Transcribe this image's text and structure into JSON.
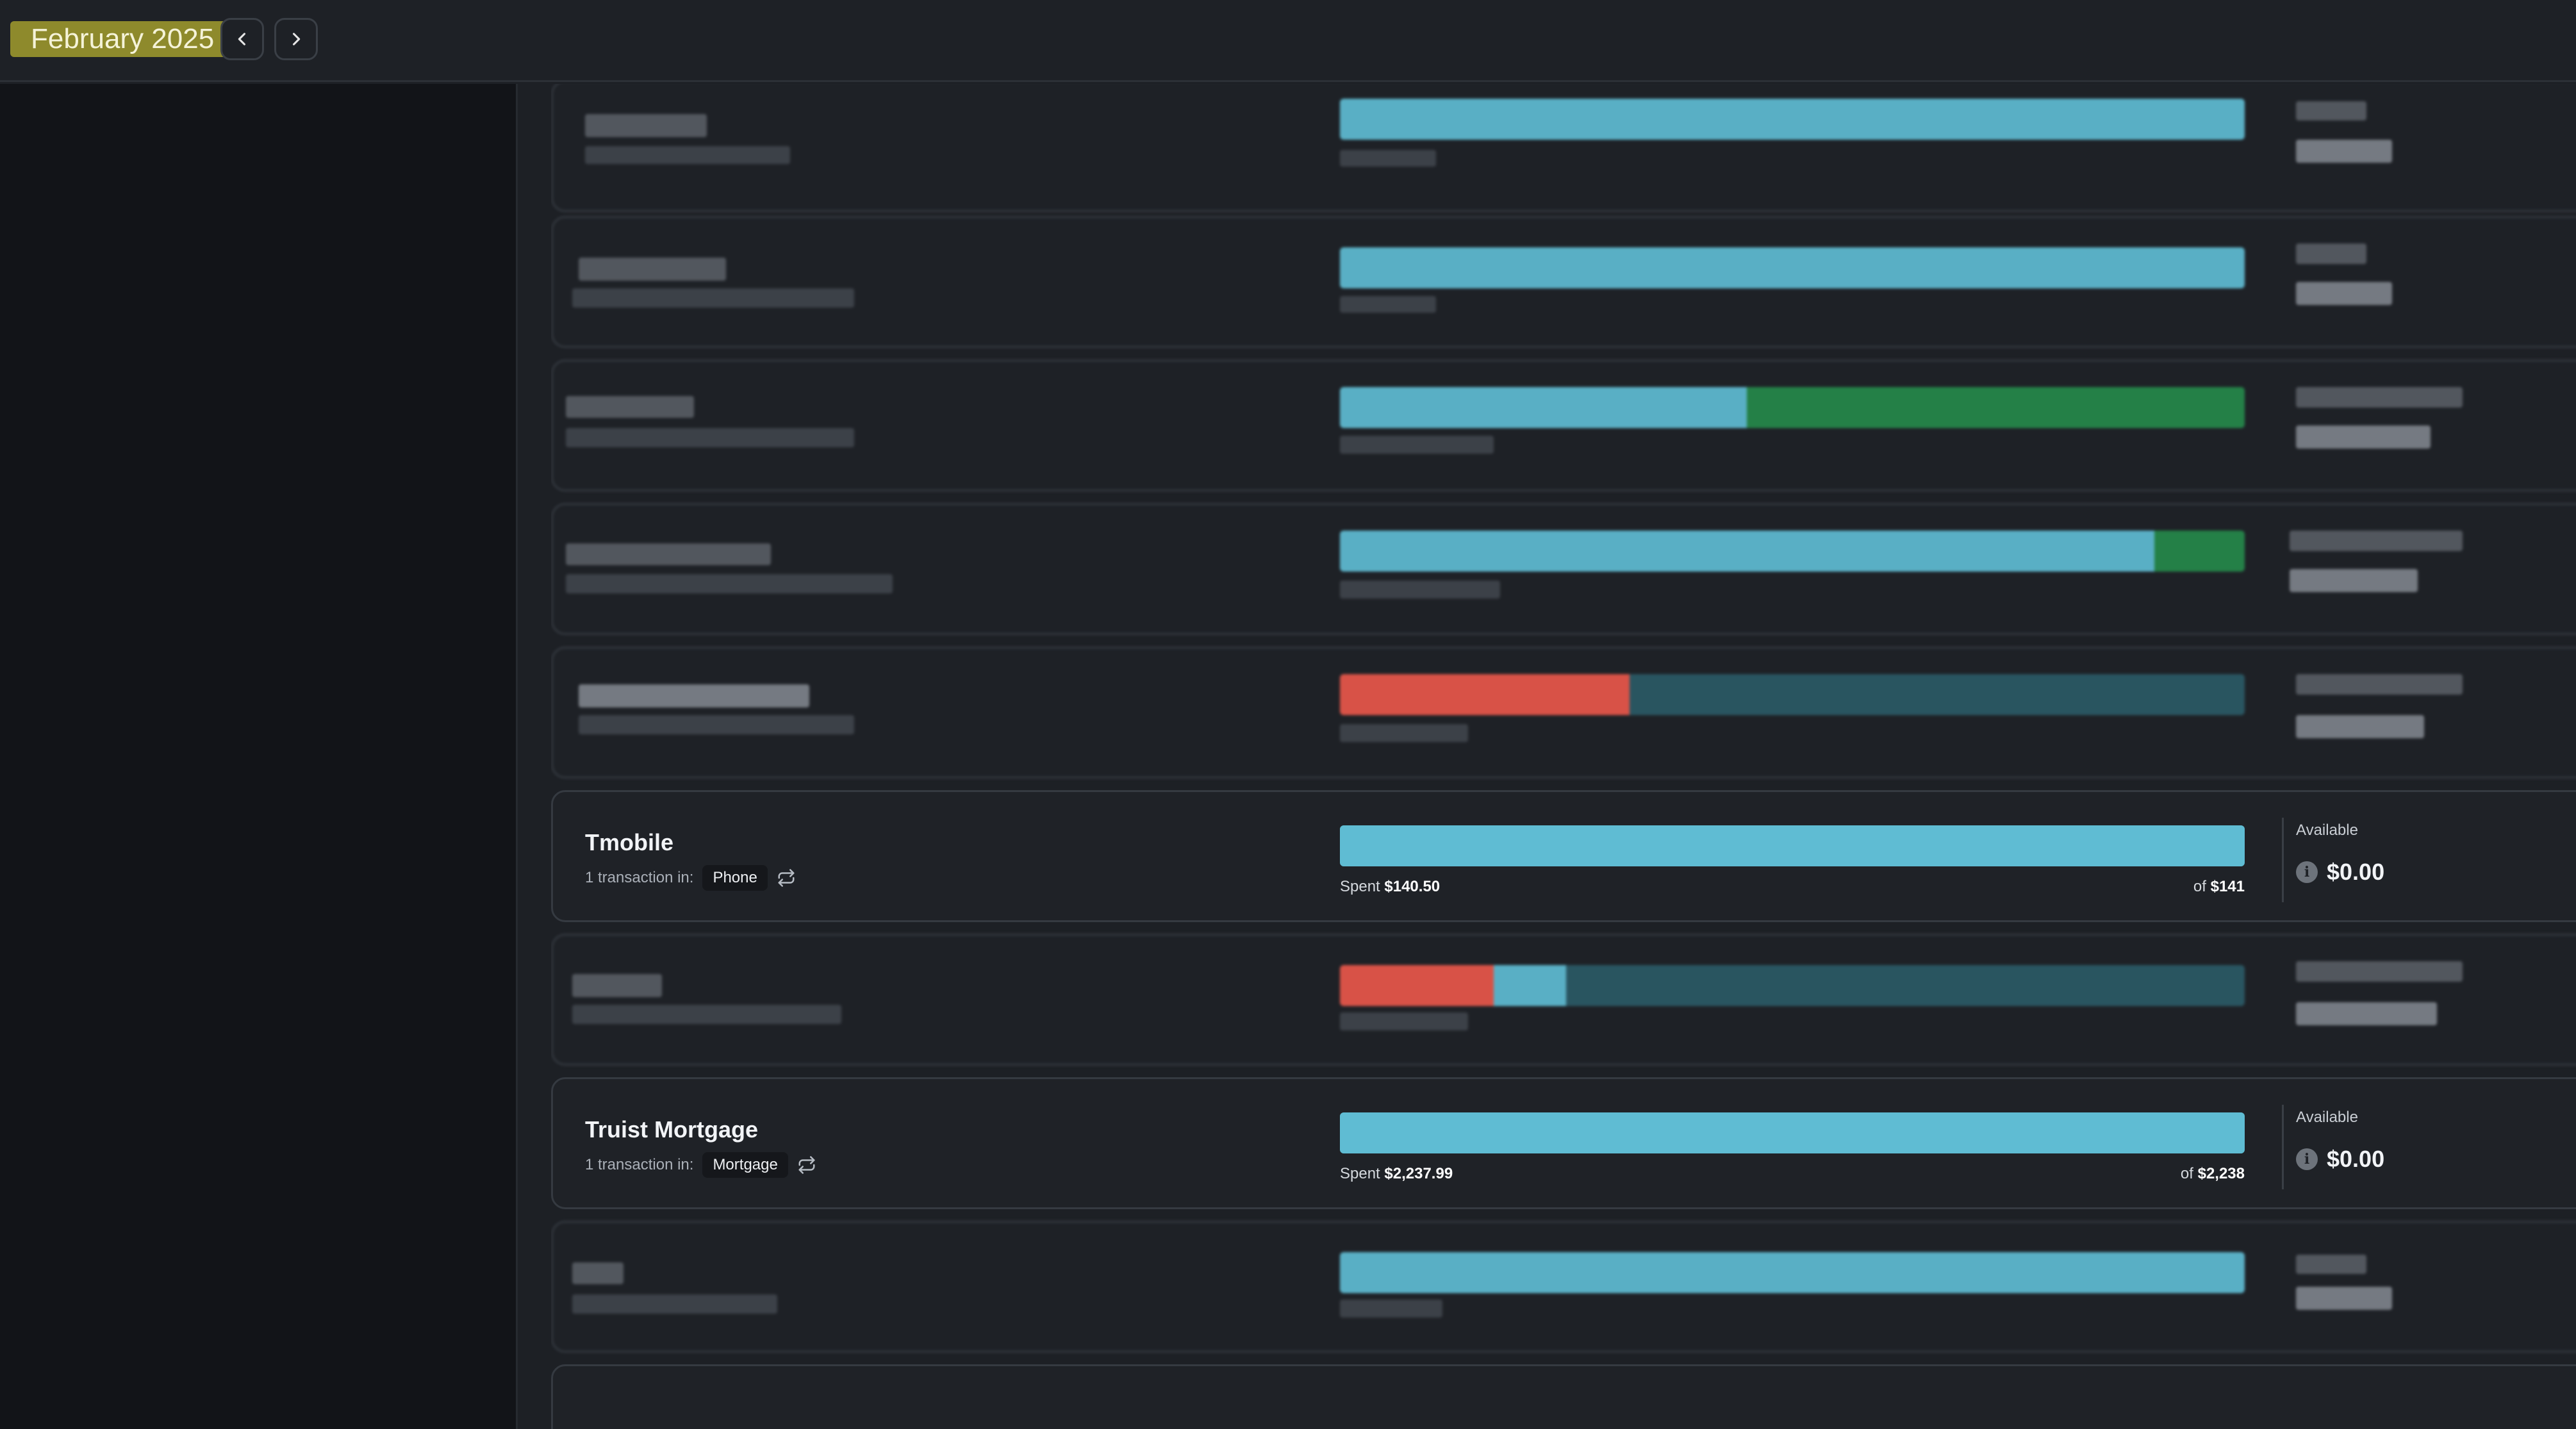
{
  "header": {
    "month": "February 2025",
    "prev_icon": "chevron-left-icon",
    "next_icon": "chevron-right-icon"
  },
  "colors": {
    "month_highlight": "#8e8a2c",
    "bar_spent": "#5fbcd3",
    "bar_track": "#2b5a66",
    "bar_over": "#e8574a",
    "bar_extra": "#25894a"
  },
  "budgets": [
    {
      "name": "Tmobile",
      "transactions_prefix": "1 transaction in:",
      "category": "Phone",
      "repeat_icon": "repeat-icon",
      "spent_prefix": "Spent",
      "spent": "$140.50",
      "of_prefix": "of",
      "limit": "$141",
      "progress_fraction": 1.0,
      "available_label": "Available",
      "available": "$0.00",
      "info_icon": "info-icon"
    },
    {
      "name": "Truist Mortgage",
      "transactions_prefix": "1 transaction in:",
      "category": "Mortgage",
      "repeat_icon": "repeat-icon",
      "spent_prefix": "Spent",
      "spent": "$2,237.99",
      "of_prefix": "of",
      "limit": "$2,238",
      "progress_fraction": 1.0,
      "available_label": "Available",
      "available": "$0.00",
      "info_icon": "info-icon"
    }
  ],
  "obscured_cards": [
    {
      "spent_fraction": 1.0,
      "extra_fraction": 0,
      "over_fraction": 0
    },
    {
      "spent_fraction": 1.0,
      "extra_fraction": 0,
      "over_fraction": 0
    },
    {
      "spent_fraction": 0.45,
      "extra_fraction": 0.55,
      "over_fraction": 0
    },
    {
      "spent_fraction": 0.9,
      "extra_fraction": 0.1,
      "over_fraction": 0
    },
    {
      "spent_fraction": 0,
      "extra_fraction": 0,
      "over_fraction": 0.32
    },
    {
      "spent_fraction": 0.08,
      "extra_fraction": 0,
      "over_fraction": 0.17
    },
    {
      "spent_fraction": 1.0,
      "extra_fraction": 0,
      "over_fraction": 0
    }
  ]
}
